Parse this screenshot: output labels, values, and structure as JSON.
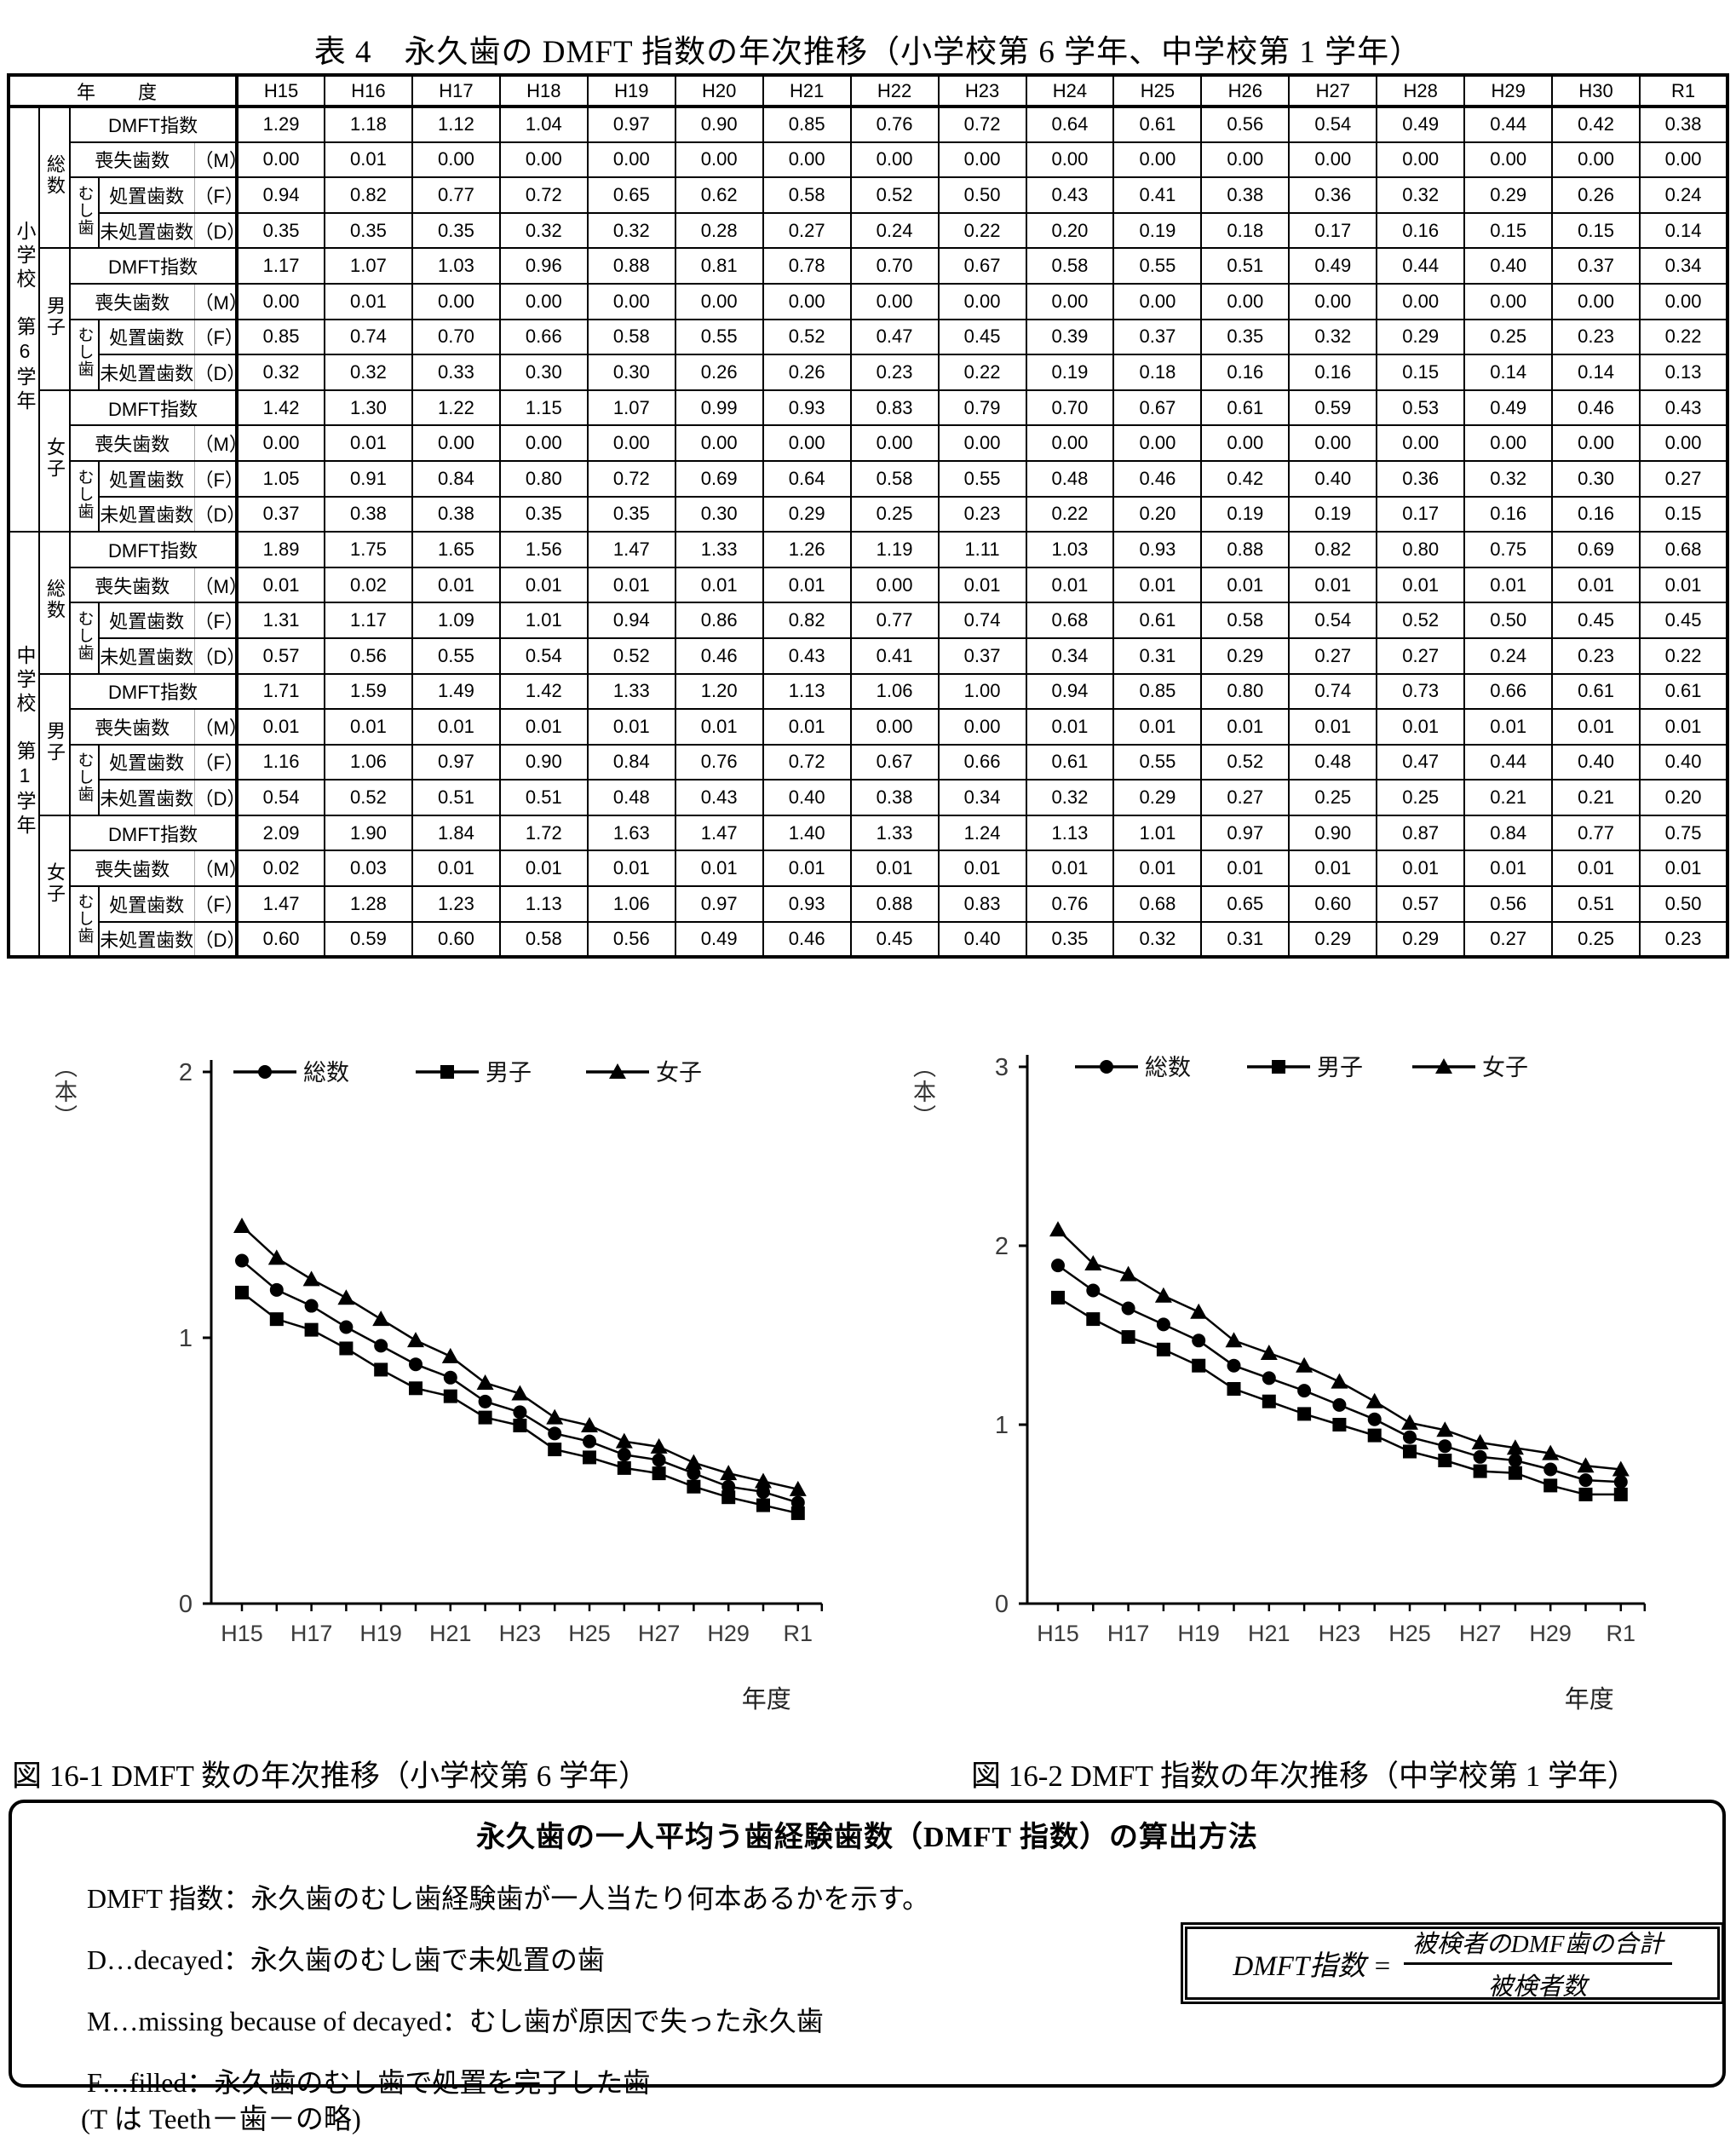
{
  "page": {
    "title": "表 4　永久歯の DMFT 指数の年次推移（小学校第 6 学年、中学校第 1 学年）"
  },
  "table": {
    "year_header": "年　度",
    "years": [
      "H15",
      "H16",
      "H17",
      "H18",
      "H19",
      "H20",
      "H21",
      "H22",
      "H23",
      "H24",
      "H25",
      "H26",
      "H27",
      "H28",
      "H29",
      "H30",
      "R1"
    ],
    "labels": {
      "dmft": "DMFT指数",
      "missing": "喪失歯数",
      "missing_code": "（M）",
      "mushiba": "むし歯",
      "filled": "処置歯数",
      "filled_code": "（F）",
      "untreated": "未処置歯数",
      "untreated_code": "（D）"
    },
    "schools": [
      {
        "name": "小学校　第6学年",
        "groups": [
          {
            "name": "総数",
            "dmft": [
              "1.29",
              "1.18",
              "1.12",
              "1.04",
              "0.97",
              "0.90",
              "0.85",
              "0.76",
              "0.72",
              "0.64",
              "0.61",
              "0.56",
              "0.54",
              "0.49",
              "0.44",
              "0.42",
              "0.38"
            ],
            "missing": [
              "0.00",
              "0.01",
              "0.00",
              "0.00",
              "0.00",
              "0.00",
              "0.00",
              "0.00",
              "0.00",
              "0.00",
              "0.00",
              "0.00",
              "0.00",
              "0.00",
              "0.00",
              "0.00",
              "0.00"
            ],
            "filled": [
              "0.94",
              "0.82",
              "0.77",
              "0.72",
              "0.65",
              "0.62",
              "0.58",
              "0.52",
              "0.50",
              "0.43",
              "0.41",
              "0.38",
              "0.36",
              "0.32",
              "0.29",
              "0.26",
              "0.24"
            ],
            "untreated": [
              "0.35",
              "0.35",
              "0.35",
              "0.32",
              "0.32",
              "0.28",
              "0.27",
              "0.24",
              "0.22",
              "0.20",
              "0.19",
              "0.18",
              "0.17",
              "0.16",
              "0.15",
              "0.15",
              "0.14"
            ]
          },
          {
            "name": "男子",
            "dmft": [
              "1.17",
              "1.07",
              "1.03",
              "0.96",
              "0.88",
              "0.81",
              "0.78",
              "0.70",
              "0.67",
              "0.58",
              "0.55",
              "0.51",
              "0.49",
              "0.44",
              "0.40",
              "0.37",
              "0.34"
            ],
            "missing": [
              "0.00",
              "0.01",
              "0.00",
              "0.00",
              "0.00",
              "0.00",
              "0.00",
              "0.00",
              "0.00",
              "0.00",
              "0.00",
              "0.00",
              "0.00",
              "0.00",
              "0.00",
              "0.00",
              "0.00"
            ],
            "filled": [
              "0.85",
              "0.74",
              "0.70",
              "0.66",
              "0.58",
              "0.55",
              "0.52",
              "0.47",
              "0.45",
              "0.39",
              "0.37",
              "0.35",
              "0.32",
              "0.29",
              "0.25",
              "0.23",
              "0.22"
            ],
            "untreated": [
              "0.32",
              "0.32",
              "0.33",
              "0.30",
              "0.30",
              "0.26",
              "0.26",
              "0.23",
              "0.22",
              "0.19",
              "0.18",
              "0.16",
              "0.16",
              "0.15",
              "0.14",
              "0.14",
              "0.13"
            ]
          },
          {
            "name": "女子",
            "dmft": [
              "1.42",
              "1.30",
              "1.22",
              "1.15",
              "1.07",
              "0.99",
              "0.93",
              "0.83",
              "0.79",
              "0.70",
              "0.67",
              "0.61",
              "0.59",
              "0.53",
              "0.49",
              "0.46",
              "0.43"
            ],
            "missing": [
              "0.00",
              "0.01",
              "0.00",
              "0.00",
              "0.00",
              "0.00",
              "0.00",
              "0.00",
              "0.00",
              "0.00",
              "0.00",
              "0.00",
              "0.00",
              "0.00",
              "0.00",
              "0.00",
              "0.00"
            ],
            "filled": [
              "1.05",
              "0.91",
              "0.84",
              "0.80",
              "0.72",
              "0.69",
              "0.64",
              "0.58",
              "0.55",
              "0.48",
              "0.46",
              "0.42",
              "0.40",
              "0.36",
              "0.32",
              "0.30",
              "0.27"
            ],
            "untreated": [
              "0.37",
              "0.38",
              "0.38",
              "0.35",
              "0.35",
              "0.30",
              "0.29",
              "0.25",
              "0.23",
              "0.22",
              "0.20",
              "0.19",
              "0.19",
              "0.17",
              "0.16",
              "0.16",
              "0.15"
            ]
          }
        ]
      },
      {
        "name": "中学校　第1学年",
        "groups": [
          {
            "name": "総数",
            "dmft": [
              "1.89",
              "1.75",
              "1.65",
              "1.56",
              "1.47",
              "1.33",
              "1.26",
              "1.19",
              "1.11",
              "1.03",
              "0.93",
              "0.88",
              "0.82",
              "0.80",
              "0.75",
              "0.69",
              "0.68"
            ],
            "missing": [
              "0.01",
              "0.02",
              "0.01",
              "0.01",
              "0.01",
              "0.01",
              "0.01",
              "0.00",
              "0.01",
              "0.01",
              "0.01",
              "0.01",
              "0.01",
              "0.01",
              "0.01",
              "0.01",
              "0.01"
            ],
            "filled": [
              "1.31",
              "1.17",
              "1.09",
              "1.01",
              "0.94",
              "0.86",
              "0.82",
              "0.77",
              "0.74",
              "0.68",
              "0.61",
              "0.58",
              "0.54",
              "0.52",
              "0.50",
              "0.45",
              "0.45"
            ],
            "untreated": [
              "0.57",
              "0.56",
              "0.55",
              "0.54",
              "0.52",
              "0.46",
              "0.43",
              "0.41",
              "0.37",
              "0.34",
              "0.31",
              "0.29",
              "0.27",
              "0.27",
              "0.24",
              "0.23",
              "0.22"
            ]
          },
          {
            "name": "男子",
            "dmft": [
              "1.71",
              "1.59",
              "1.49",
              "1.42",
              "1.33",
              "1.20",
              "1.13",
              "1.06",
              "1.00",
              "0.94",
              "0.85",
              "0.80",
              "0.74",
              "0.73",
              "0.66",
              "0.61",
              "0.61"
            ],
            "missing": [
              "0.01",
              "0.01",
              "0.01",
              "0.01",
              "0.01",
              "0.01",
              "0.01",
              "0.00",
              "0.00",
              "0.01",
              "0.01",
              "0.01",
              "0.01",
              "0.01",
              "0.01",
              "0.01",
              "0.01"
            ],
            "filled": [
              "1.16",
              "1.06",
              "0.97",
              "0.90",
              "0.84",
              "0.76",
              "0.72",
              "0.67",
              "0.66",
              "0.61",
              "0.55",
              "0.52",
              "0.48",
              "0.47",
              "0.44",
              "0.40",
              "0.40"
            ],
            "untreated": [
              "0.54",
              "0.52",
              "0.51",
              "0.51",
              "0.48",
              "0.43",
              "0.40",
              "0.38",
              "0.34",
              "0.32",
              "0.29",
              "0.27",
              "0.25",
              "0.25",
              "0.21",
              "0.21",
              "0.20"
            ]
          },
          {
            "name": "女子",
            "dmft": [
              "2.09",
              "1.90",
              "1.84",
              "1.72",
              "1.63",
              "1.47",
              "1.40",
              "1.33",
              "1.24",
              "1.13",
              "1.01",
              "0.97",
              "0.90",
              "0.87",
              "0.84",
              "0.77",
              "0.75"
            ],
            "missing": [
              "0.02",
              "0.03",
              "0.01",
              "0.01",
              "0.01",
              "0.01",
              "0.01",
              "0.01",
              "0.01",
              "0.01",
              "0.01",
              "0.01",
              "0.01",
              "0.01",
              "0.01",
              "0.01",
              "0.01"
            ],
            "filled": [
              "1.47",
              "1.28",
              "1.23",
              "1.13",
              "1.06",
              "0.97",
              "0.93",
              "0.88",
              "0.83",
              "0.76",
              "0.68",
              "0.65",
              "0.60",
              "0.57",
              "0.56",
              "0.51",
              "0.50"
            ],
            "untreated": [
              "0.60",
              "0.59",
              "0.60",
              "0.58",
              "0.56",
              "0.49",
              "0.46",
              "0.45",
              "0.40",
              "0.35",
              "0.32",
              "0.31",
              "0.29",
              "0.29",
              "0.27",
              "0.25",
              "0.23"
            ]
          }
        ]
      }
    ]
  },
  "chart_data": [
    {
      "type": "line",
      "title": "図 16-1 DMFT 数の年次推移（小学校第 6 学年）",
      "ylabel": "（本）",
      "xlabel": "年度",
      "ylim": [
        0,
        2
      ],
      "yticks": [
        0,
        1,
        2
      ],
      "grid": false,
      "legend_position": "top",
      "x": [
        "H15",
        "H16",
        "H17",
        "H18",
        "H19",
        "H20",
        "H21",
        "H22",
        "H23",
        "H24",
        "H25",
        "H26",
        "H27",
        "H28",
        "H29",
        "H30",
        "R1"
      ],
      "xtick_labels": [
        "H15",
        "H17",
        "H19",
        "H21",
        "H23",
        "H25",
        "H27",
        "H29",
        "R1"
      ],
      "series": [
        {
          "name": "総数",
          "marker": "circle",
          "values": [
            1.29,
            1.18,
            1.12,
            1.04,
            0.97,
            0.9,
            0.85,
            0.76,
            0.72,
            0.64,
            0.61,
            0.56,
            0.54,
            0.49,
            0.44,
            0.42,
            0.38
          ]
        },
        {
          "name": "男子",
          "marker": "square",
          "values": [
            1.17,
            1.07,
            1.03,
            0.96,
            0.88,
            0.81,
            0.78,
            0.7,
            0.67,
            0.58,
            0.55,
            0.51,
            0.49,
            0.44,
            0.4,
            0.37,
            0.34
          ]
        },
        {
          "name": "女子",
          "marker": "triangle",
          "values": [
            1.42,
            1.3,
            1.22,
            1.15,
            1.07,
            0.99,
            0.93,
            0.83,
            0.79,
            0.7,
            0.67,
            0.61,
            0.59,
            0.53,
            0.49,
            0.46,
            0.43
          ]
        }
      ]
    },
    {
      "type": "line",
      "title": "図 16-2 DMFT 指数の年次推移（中学校第 1 学年）",
      "ylabel": "（本）",
      "xlabel": "年度",
      "ylim": [
        0,
        3
      ],
      "yticks": [
        0,
        1,
        2,
        3
      ],
      "grid": false,
      "legend_position": "top",
      "x": [
        "H15",
        "H16",
        "H17",
        "H18",
        "H19",
        "H20",
        "H21",
        "H22",
        "H23",
        "H24",
        "H25",
        "H26",
        "H27",
        "H28",
        "H29",
        "H30",
        "R1"
      ],
      "xtick_labels": [
        "H15",
        "H17",
        "H19",
        "H21",
        "H23",
        "H25",
        "H27",
        "H29",
        "R1"
      ],
      "series": [
        {
          "name": "総数",
          "marker": "circle",
          "values": [
            1.89,
            1.75,
            1.65,
            1.56,
            1.47,
            1.33,
            1.26,
            1.19,
            1.11,
            1.03,
            0.93,
            0.88,
            0.82,
            0.8,
            0.75,
            0.69,
            0.68
          ]
        },
        {
          "name": "男子",
          "marker": "square",
          "values": [
            1.71,
            1.59,
            1.49,
            1.42,
            1.33,
            1.2,
            1.13,
            1.06,
            1.0,
            0.94,
            0.85,
            0.8,
            0.74,
            0.73,
            0.66,
            0.61,
            0.61
          ]
        },
        {
          "name": "女子",
          "marker": "triangle",
          "values": [
            2.09,
            1.9,
            1.84,
            1.72,
            1.63,
            1.47,
            1.4,
            1.33,
            1.24,
            1.13,
            1.01,
            0.97,
            0.9,
            0.87,
            0.84,
            0.77,
            0.75
          ]
        }
      ]
    }
  ],
  "captions": {
    "fig1": "図 16-1 DMFT 数の年次推移（小学校第 6 学年）",
    "fig2": "図 16-2 DMFT 指数の年次推移（中学校第 1 学年）"
  },
  "info_box": {
    "title": "永久歯の一人平均う歯経験歯数（DMFT 指数）の算出方法",
    "lines": [
      "DMFT 指数：永久歯のむし歯経験歯が一人当たり何本あるかを示す。",
      "D…decayed：永久歯のむし歯で未処置の歯",
      "M…missing because of decayed：むし歯が原因で失った永久歯",
      "F…filled：永久歯のむし歯で処置を完了した歯"
    ],
    "formula": {
      "lhs": "DMFT指数 =",
      "numerator": "被検者のDMF歯の合計",
      "denominator": "被検者数"
    }
  },
  "footnote": "(T は Teeth－歯－の略)"
}
